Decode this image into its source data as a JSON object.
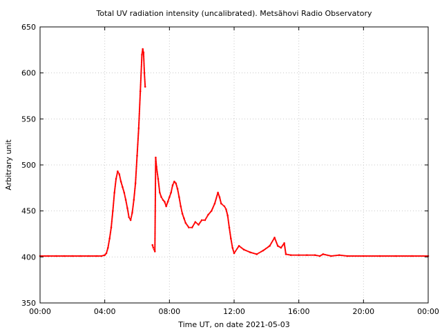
{
  "chart_data": {
    "type": "scatter",
    "title": "Total UV radiation intensity (uncalibrated). Metsähovi Radio Observatory",
    "xlabel": "Time UT, on date 2021-05-03",
    "ylabel": "Arbitrary unit",
    "xlim": [
      0,
      24
    ],
    "ylim": [
      350,
      650
    ],
    "x_unit": "hours UT",
    "x_ticks": [
      0,
      4,
      8,
      12,
      16,
      20,
      24
    ],
    "x_tick_labels": [
      "00:00",
      "04:00",
      "08:00",
      "12:00",
      "16:00",
      "20:00",
      "00:00"
    ],
    "y_ticks": [
      350,
      400,
      450,
      500,
      550,
      600,
      650
    ],
    "y_tick_labels": [
      "350",
      "400",
      "450",
      "500",
      "550",
      "600",
      "650"
    ],
    "grid": true,
    "marker_color": "#ff0000",
    "series": [
      {
        "name": "",
        "color": "#ff0000",
        "points": [
          [
            0.0,
            401
          ],
          [
            0.5,
            401
          ],
          [
            1.0,
            401
          ],
          [
            1.5,
            401
          ],
          [
            2.0,
            401
          ],
          [
            2.5,
            401
          ],
          [
            3.0,
            401
          ],
          [
            3.5,
            401
          ],
          [
            3.8,
            401
          ],
          [
            4.0,
            402
          ],
          [
            4.1,
            404
          ],
          [
            4.2,
            410
          ],
          [
            4.3,
            420
          ],
          [
            4.4,
            432
          ],
          [
            4.5,
            450
          ],
          [
            4.6,
            470
          ],
          [
            4.7,
            485
          ],
          [
            4.8,
            493
          ],
          [
            4.9,
            490
          ],
          [
            5.0,
            482
          ],
          [
            5.1,
            476
          ],
          [
            5.2,
            470
          ],
          [
            5.3,
            462
          ],
          [
            5.4,
            453
          ],
          [
            5.5,
            443
          ],
          [
            5.6,
            440
          ],
          [
            5.7,
            448
          ],
          [
            5.8,
            462
          ],
          [
            5.9,
            480
          ],
          [
            6.0,
            510
          ],
          [
            6.1,
            540
          ],
          [
            6.2,
            580
          ],
          [
            6.3,
            620
          ],
          [
            6.35,
            626
          ],
          [
            6.4,
            622
          ],
          [
            6.45,
            600
          ],
          [
            6.5,
            585
          ],
          [
            6.95,
            413
          ],
          [
            7.0,
            410
          ],
          [
            7.05,
            408
          ],
          [
            7.1,
            406
          ],
          [
            7.15,
            508
          ],
          [
            7.2,
            498
          ],
          [
            7.3,
            485
          ],
          [
            7.4,
            470
          ],
          [
            7.5,
            465
          ],
          [
            7.6,
            462
          ],
          [
            7.7,
            460
          ],
          [
            7.8,
            455
          ],
          [
            7.9,
            460
          ],
          [
            8.0,
            465
          ],
          [
            8.1,
            470
          ],
          [
            8.2,
            478
          ],
          [
            8.3,
            482
          ],
          [
            8.4,
            480
          ],
          [
            8.5,
            474
          ],
          [
            8.6,
            465
          ],
          [
            8.7,
            455
          ],
          [
            8.8,
            447
          ],
          [
            8.9,
            442
          ],
          [
            9.0,
            437
          ],
          [
            9.2,
            432
          ],
          [
            9.4,
            432
          ],
          [
            9.6,
            438
          ],
          [
            9.8,
            435
          ],
          [
            10.0,
            440
          ],
          [
            10.2,
            440
          ],
          [
            10.4,
            446
          ],
          [
            10.6,
            450
          ],
          [
            10.8,
            458
          ],
          [
            11.0,
            470
          ],
          [
            11.1,
            465
          ],
          [
            11.2,
            458
          ],
          [
            11.4,
            455
          ],
          [
            11.5,
            452
          ],
          [
            11.6,
            445
          ],
          [
            11.7,
            432
          ],
          [
            11.8,
            420
          ],
          [
            11.9,
            410
          ],
          [
            12.0,
            404
          ],
          [
            12.3,
            412
          ],
          [
            12.6,
            408
          ],
          [
            13.0,
            405
          ],
          [
            13.4,
            403
          ],
          [
            13.8,
            407
          ],
          [
            14.2,
            412
          ],
          [
            14.5,
            421
          ],
          [
            14.7,
            412
          ],
          [
            14.9,
            410
          ],
          [
            15.1,
            415
          ],
          [
            15.2,
            403
          ],
          [
            15.5,
            402
          ],
          [
            16.0,
            402
          ],
          [
            16.5,
            402
          ],
          [
            17.0,
            402
          ],
          [
            17.3,
            401
          ],
          [
            17.5,
            403
          ],
          [
            18.0,
            401
          ],
          [
            18.5,
            402
          ],
          [
            19.0,
            401
          ],
          [
            20.0,
            401
          ],
          [
            21.0,
            401
          ],
          [
            22.0,
            401
          ],
          [
            23.0,
            401
          ],
          [
            24.0,
            401
          ]
        ]
      }
    ]
  }
}
